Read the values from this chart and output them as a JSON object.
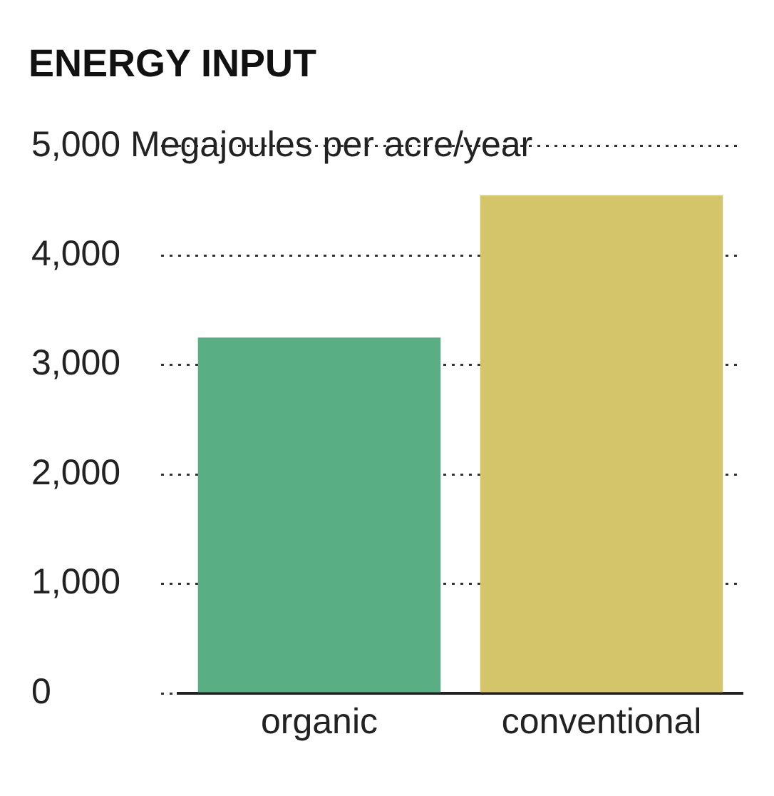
{
  "chart_data": {
    "type": "bar",
    "title": "ENERGY INPUT",
    "categories": [
      "organic",
      "conventional"
    ],
    "values": [
      3250,
      4550
    ],
    "colors": [
      "#5aae84",
      "#d4c46a"
    ],
    "ylim": [
      0,
      5000
    ],
    "yticks": [
      0,
      {
        "value": 1000,
        "label": "1,000"
      },
      {
        "value": 2000,
        "label": "2,000"
      },
      {
        "value": 3000,
        "label": "3,000"
      },
      {
        "value": 4000,
        "label": "4,000"
      },
      {
        "value": 5000,
        "label": "5,000 Megajoules per acre/year"
      }
    ],
    "grid": "y",
    "legend": false
  }
}
